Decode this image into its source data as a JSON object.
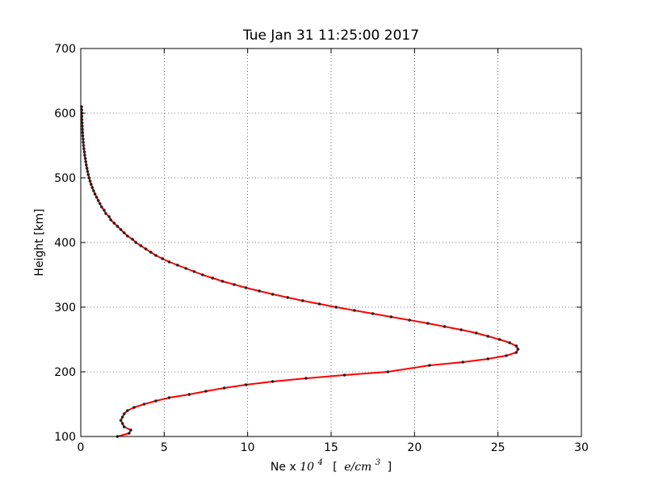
{
  "chart_data": {
    "type": "line",
    "title": "Tue Jan 31 11:25:00 2017",
    "xlabel": {
      "prefix": "Ne x ",
      "base": "10",
      "exp": "4",
      "unit_open": "[",
      "unit_var": "e/cm",
      "unit_exp": "3",
      "unit_close": "]"
    },
    "ylabel": "Height [km]",
    "xlim": [
      0,
      30
    ],
    "ylim": [
      100,
      700
    ],
    "xticks": [
      0,
      5,
      10,
      15,
      20,
      25,
      30
    ],
    "yticks": [
      100,
      200,
      300,
      400,
      500,
      600,
      700
    ],
    "grid": true,
    "line_color": "#ff0000",
    "marker_color": "#222222",
    "series": [
      {
        "x": [
          2.2,
          2.9,
          3.0,
          2.6,
          2.5,
          2.4,
          2.5,
          2.6,
          2.8,
          3.2,
          3.8,
          4.5,
          5.3,
          6.5,
          7.5,
          8.6,
          9.9,
          11.5,
          13.5,
          15.8,
          18.4,
          20.9,
          22.9,
          24.4,
          25.5,
          26.1,
          26.2,
          26.1,
          25.7,
          25.1,
          24.4,
          23.7,
          22.8,
          21.8,
          20.8,
          19.7,
          18.6,
          17.5,
          16.4,
          15.3,
          14.3,
          13.3,
          12.4,
          11.5,
          10.7,
          9.9,
          9.2,
          8.5,
          7.9,
          7.3,
          6.8,
          6.3,
          5.8,
          5.3,
          4.9,
          4.5,
          4.2,
          3.9,
          3.6,
          3.3,
          3.1,
          2.8,
          2.6,
          2.4,
          2.2,
          2.0,
          1.8,
          1.7,
          1.5,
          1.4,
          1.25,
          1.15,
          1.05,
          0.95,
          0.85,
          0.77,
          0.69,
          0.62,
          0.56,
          0.5,
          0.45,
          0.41,
          0.37,
          0.33,
          0.3,
          0.27,
          0.24,
          0.22,
          0.19,
          0.17,
          0.15,
          0.14,
          0.12,
          0.11,
          0.1,
          0.09,
          0.08,
          0.07,
          0.065,
          0.06,
          0.055,
          0.05
        ],
        "y": [
          100,
          105,
          110,
          115,
          120,
          125,
          130,
          135,
          140,
          145,
          150,
          155,
          160,
          165,
          170,
          175,
          180,
          185,
          190,
          195,
          200,
          210,
          215,
          220,
          225,
          230,
          235,
          240,
          245,
          250,
          255,
          260,
          265,
          270,
          275,
          280,
          285,
          290,
          295,
          300,
          305,
          310,
          315,
          320,
          325,
          330,
          335,
          340,
          345,
          350,
          355,
          360,
          365,
          370,
          375,
          380,
          385,
          390,
          395,
          400,
          405,
          410,
          415,
          420,
          425,
          430,
          435,
          440,
          445,
          450,
          455,
          460,
          465,
          470,
          475,
          480,
          485,
          490,
          495,
          500,
          505,
          510,
          515,
          520,
          525,
          530,
          535,
          540,
          545,
          550,
          555,
          560,
          565,
          570,
          575,
          580,
          585,
          590,
          595,
          600,
          605,
          610
        ]
      }
    ]
  }
}
